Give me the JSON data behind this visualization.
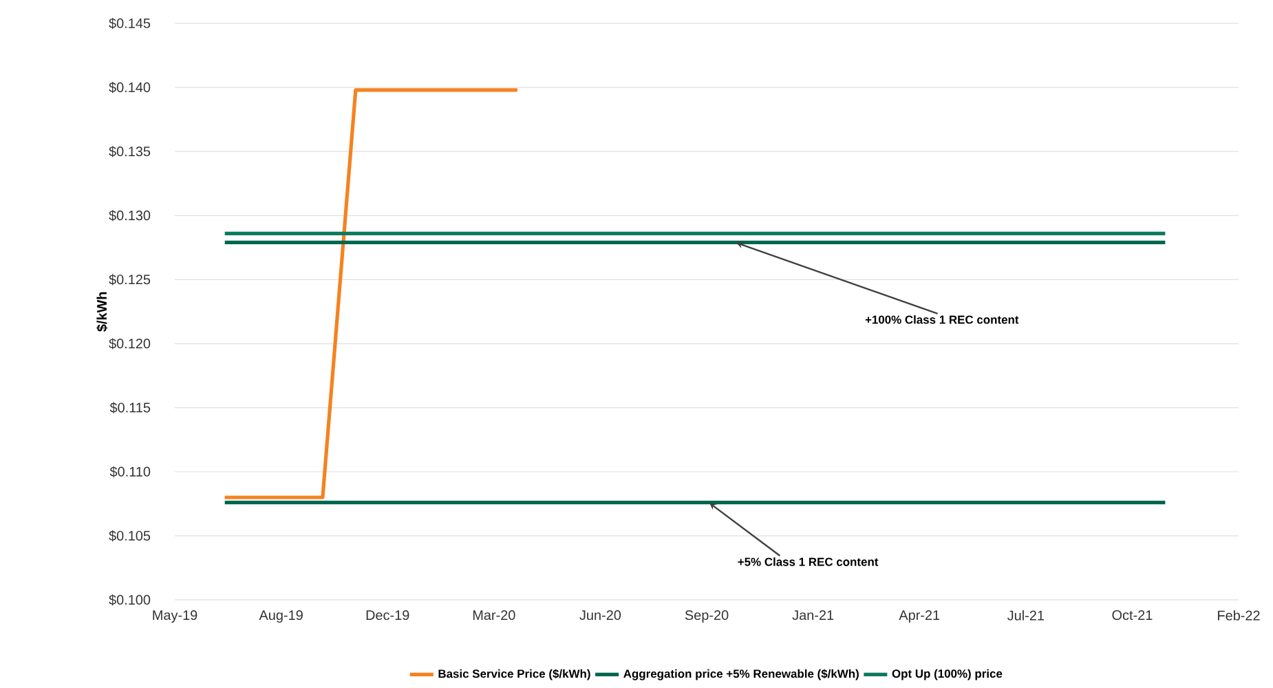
{
  "chart_data": {
    "type": "line",
    "ylabel": "$/kWh",
    "xlim": [
      "2019-05-15",
      "2022-02-08"
    ],
    "xticks": [
      {
        "value": "2019-05-15",
        "label": "May-19"
      },
      {
        "value": "2019-08-23",
        "label": "Aug-19"
      },
      {
        "value": "2019-12-01",
        "label": "Dec-19"
      },
      {
        "value": "2020-03-10",
        "label": "Mar-20"
      },
      {
        "value": "2020-06-18",
        "label": "Jun-20"
      },
      {
        "value": "2020-09-26",
        "label": "Sep-20"
      },
      {
        "value": "2021-01-04",
        "label": "Jan-21"
      },
      {
        "value": "2021-04-14",
        "label": "Apr-21"
      },
      {
        "value": "2021-07-23",
        "label": "Jul-21"
      },
      {
        "value": "2021-10-31",
        "label": "Oct-21"
      },
      {
        "value": "2022-02-08",
        "label": "Feb-22"
      }
    ],
    "ylim": [
      0.1,
      0.145
    ],
    "yticks": [
      {
        "value": 0.1,
        "label": "$0.100"
      },
      {
        "value": 0.105,
        "label": "$0.105"
      },
      {
        "value": 0.11,
        "label": "$0.110"
      },
      {
        "value": 0.115,
        "label": "$0.115"
      },
      {
        "value": 0.12,
        "label": "$0.120"
      },
      {
        "value": 0.125,
        "label": "$0.125"
      },
      {
        "value": 0.13,
        "label": "$0.130"
      },
      {
        "value": 0.135,
        "label": "$0.135"
      },
      {
        "value": 0.14,
        "label": "$0.140"
      },
      {
        "value": 0.145,
        "label": "$0.145"
      }
    ],
    "grid": "y",
    "legend": "bottom",
    "marker": "none",
    "line_style": "solid",
    "series": [
      {
        "name": "Basic Service Price ($/kWh)",
        "color": "#f58220",
        "x": [
          "2019-07-01",
          "2019-10-01",
          "2019-11-01",
          "2020-04-01"
        ],
        "values": [
          0.108,
          0.108,
          0.1398,
          0.1398
        ]
      },
      {
        "name": "Aggregation price +5% Renewable ($/kWh)",
        "color": "#00664f",
        "x": [
          "2019-07-01",
          "2021-12-01"
        ],
        "values": [
          0.1076,
          0.1076
        ]
      },
      {
        "name": "Opt Up (100%) price",
        "color": "#0d7a5f",
        "x": [
          "2019-07-01",
          "2021-12-01"
        ],
        "values": [
          0.1286,
          0.1286
        ]
      },
      {
        "color": "#00664f",
        "x": [
          "2019-07-01",
          "2021-12-01"
        ],
        "values": [
          0.1279,
          0.1279
        ]
      }
    ],
    "annotations": [
      {
        "text": "+100% Class 1 REC content",
        "x": "2020-10-23",
        "y": 0.1279
      },
      {
        "text": "+5% Class 1 REC content",
        "x": "2020-09-28",
        "y": 0.1076
      }
    ]
  }
}
